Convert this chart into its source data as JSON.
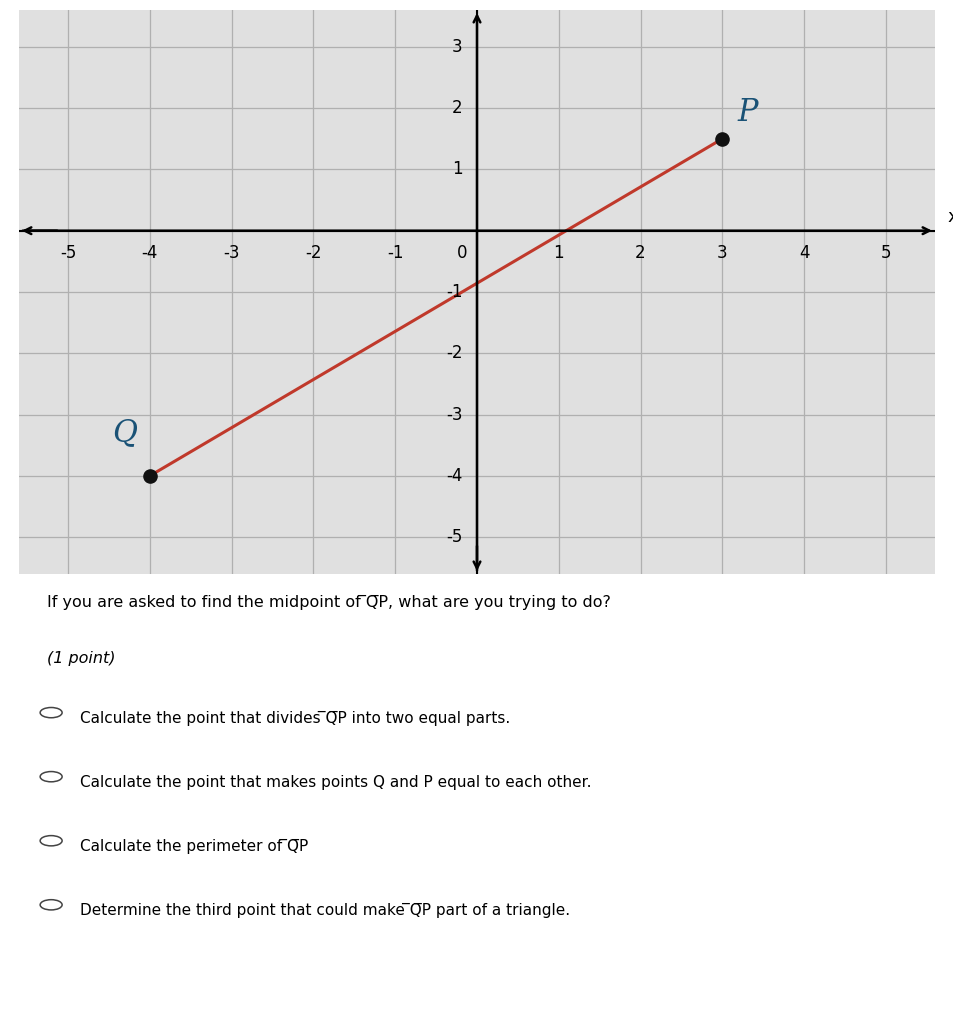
{
  "Q": [
    -4,
    -4
  ],
  "P": [
    3,
    1.5
  ],
  "Q_label": "Q",
  "P_label": "P",
  "line_color": "#c0392b",
  "point_color": "#111111",
  "label_color": "#1a5276",
  "xlim": [
    -5.6,
    5.6
  ],
  "ylim": [
    -5.6,
    3.6
  ],
  "xticks": [
    -5,
    -4,
    -3,
    -2,
    -1,
    0,
    1,
    2,
    3,
    4,
    5
  ],
  "yticks": [
    -5,
    -4,
    -3,
    -2,
    -1,
    1,
    2,
    3
  ],
  "xlabel": "x",
  "grid_color": "#b0b0b0",
  "bg_color": "#e0e0e0",
  "line_width": 2.2,
  "point_size": 90,
  "figure_width": 9.54,
  "figure_height": 10.11,
  "question": "If you are asked to find the midpoint of ̅Q̅P, what are you trying to do?",
  "point_label": "(1 point)",
  "choices": [
    "Calculate the point that divides ̅Q̅P into two equal parts.",
    "Calculate the point that makes points Q and P equal to each other.",
    "Calculate the perimeter of ̅Q̅P",
    "Determine the third point that could make ̅Q̅P part of a triangle."
  ]
}
